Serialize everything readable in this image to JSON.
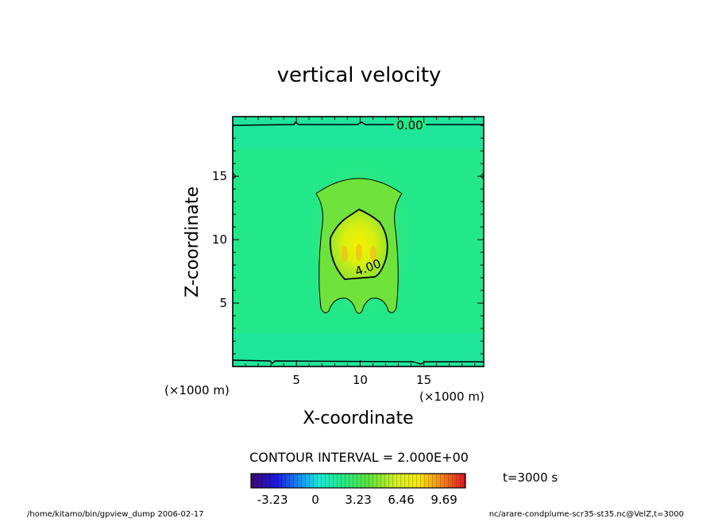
{
  "chart_data": {
    "type": "heatmap",
    "title": "vertical velocity",
    "xlabel": "X-coordinate",
    "ylabel": "Z-coordinate",
    "x_unit": "(×1000 m)",
    "y_unit": "(×1000 m)",
    "xlim": [
      0,
      19.7
    ],
    "ylim": [
      0,
      19.7
    ],
    "x_ticks": [
      "5",
      "10",
      "15"
    ],
    "x_tick_values": [
      5,
      10,
      15
    ],
    "y_ticks": [
      "5",
      "10",
      "15"
    ],
    "y_tick_values": [
      5,
      10,
      15
    ],
    "contour_labels": [
      {
        "text": "0.00",
        "level": 0.0
      },
      {
        "text": "4.00",
        "level": 4.0
      }
    ],
    "contour_interval_text": "CONTOUR INTERVAL = 2.000E+00",
    "colorbar": {
      "range": [
        -4.85,
        11.3
      ],
      "tick_labels": [
        "-3.23",
        "0",
        "3.23",
        "6.46",
        "9.69"
      ],
      "tick_values": [
        -3.23,
        0,
        3.23,
        6.46,
        9.69
      ],
      "colormap": "rainbow"
    },
    "time_label": "t=3000 s"
  },
  "footer": {
    "left": "/home/kitamo/bin/gpview_dump  2006-02-17",
    "right": "nc/arare-condplume-scr35-st35.nc@VelZ,t=3000"
  },
  "colors": {
    "background_field": "#22e88a",
    "core": "#f5f000",
    "frame": "#000000"
  }
}
